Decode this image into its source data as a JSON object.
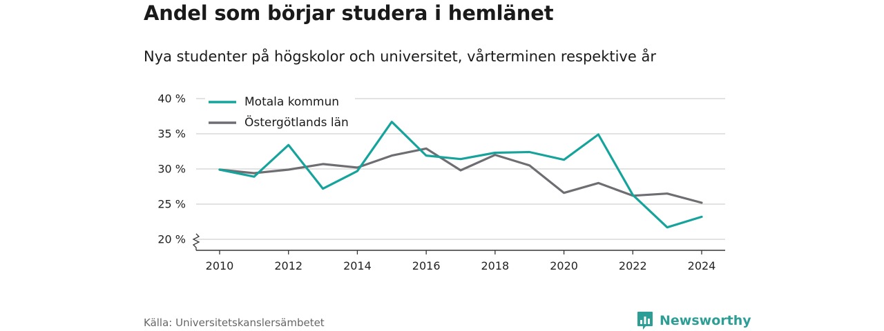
{
  "page": {
    "title": "Andel som börjar studera i hemlänet",
    "subtitle": "Nya studenter på högskolor och universitet, vårterminen respektive år",
    "source": "Källa: Universitetskanslersämbetet",
    "brand": "Newsworthy"
  },
  "colors": {
    "motala": "#16a39b",
    "ostergotland": "#6e6d72",
    "grid": "#d9d9d9",
    "axis": "#333333",
    "brand": "#2d9e96"
  },
  "icons": {
    "brand_logo": "bar-chart-speech-bubble-icon",
    "axis_break": "zigzag-axis-break-icon"
  },
  "chart_data": {
    "type": "line",
    "title": "Andel som börjar studera i hemlänet",
    "subtitle": "Nya studenter på högskolor och universitet, vårterminen respektive år",
    "x": [
      2010,
      2011,
      2012,
      2013,
      2014,
      2015,
      2016,
      2017,
      2018,
      2019,
      2020,
      2021,
      2022,
      2023,
      2024
    ],
    "x_ticks": [
      2010,
      2012,
      2014,
      2016,
      2018,
      2020,
      2022,
      2024
    ],
    "x_tick_labels": [
      "2010",
      "2012",
      "2014",
      "2016",
      "2018",
      "2020",
      "2022",
      "2024"
    ],
    "ylim": [
      20,
      40
    ],
    "y_ticks": [
      20,
      25,
      30,
      35,
      40
    ],
    "y_tick_labels": [
      "20 %",
      "25 %",
      "30 %",
      "35 %",
      "40 %"
    ],
    "y_axis_break": true,
    "grid": true,
    "legend_position": "top-left",
    "series": [
      {
        "name": "Motala kommun",
        "color": "#16a39b",
        "values": [
          29.9,
          28.9,
          33.4,
          27.2,
          29.7,
          36.7,
          31.9,
          31.4,
          32.3,
          32.4,
          31.3,
          34.9,
          26.3,
          21.7,
          23.2
        ]
      },
      {
        "name": "Östergötlands län",
        "color": "#6e6d72",
        "values": [
          29.9,
          29.4,
          29.9,
          30.7,
          30.2,
          31.9,
          32.9,
          29.8,
          32.0,
          30.5,
          26.6,
          28.0,
          26.2,
          26.5,
          25.2
        ]
      }
    ]
  }
}
